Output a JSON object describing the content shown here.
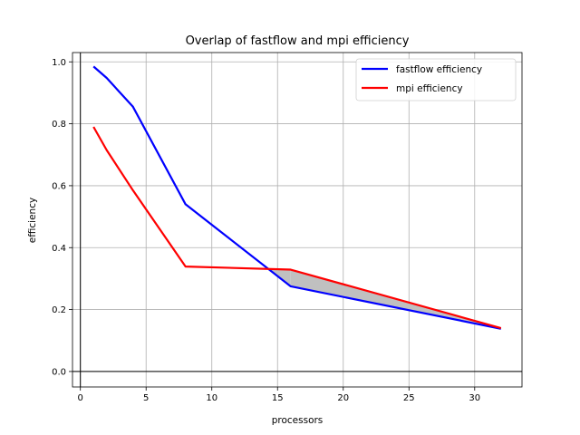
{
  "chart_data": {
    "type": "line",
    "title": "Overlap of fastflow and mpi efficiency",
    "xlabel": "processors",
    "ylabel": "efficiency",
    "xlim": [
      -0.6,
      33.6
    ],
    "ylim": [
      -0.05,
      1.03
    ],
    "xticks": [
      0,
      5,
      10,
      15,
      20,
      25,
      30
    ],
    "yticks": [
      0.0,
      0.2,
      0.4,
      0.6,
      0.8,
      1.0
    ],
    "xtick_labels": [
      "0",
      "5",
      "10",
      "15",
      "20",
      "25",
      "30"
    ],
    "ytick_labels": [
      "0.0",
      "0.2",
      "0.4",
      "0.6",
      "0.8",
      "1.0"
    ],
    "grid": true,
    "zero_lines": true,
    "legend_position": "top-right",
    "fill_between_where": "mpi > fastflow",
    "fill_color": "#c0c0c0",
    "series": [
      {
        "name": "fastflow efficiency",
        "color": "#0000ff",
        "x": [
          1,
          2,
          4,
          8,
          16,
          32
        ],
        "y": [
          0.985,
          0.948,
          0.855,
          0.54,
          0.275,
          0.138
        ]
      },
      {
        "name": "mpi efficiency",
        "color": "#ff0000",
        "x": [
          1,
          2,
          4,
          8,
          16,
          32
        ],
        "y": [
          0.79,
          0.715,
          0.585,
          0.339,
          0.329,
          0.14
        ]
      }
    ]
  }
}
